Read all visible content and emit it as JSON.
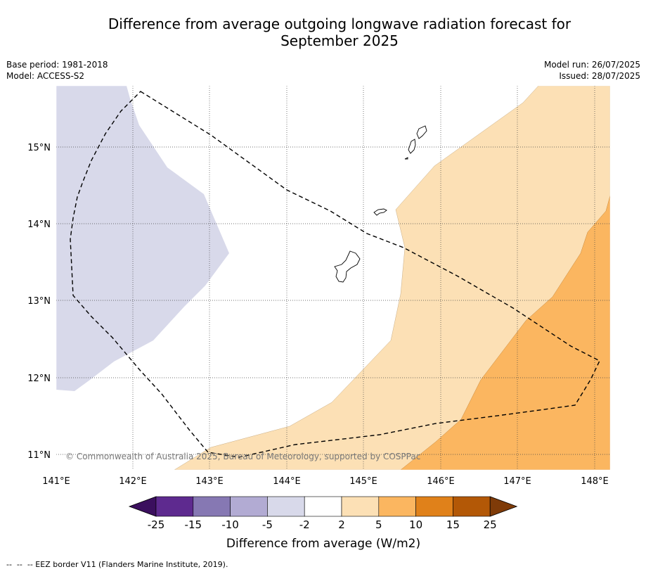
{
  "header": {
    "title_line1": "Difference from average outgoing longwave radiation forecast for",
    "title_line2": "September 2025",
    "base_period": "Base period: 1981-2018",
    "model": "Model: ACCESS-S2",
    "model_run": "Model run: 26/07/2025",
    "issued": "Issued: 28/07/2025"
  },
  "map": {
    "lat_labels": [
      "15°N",
      "14°N",
      "13°N",
      "12°N",
      "11°N"
    ],
    "lon_labels": [
      "141°E",
      "142°E",
      "143°E",
      "144°E",
      "145°E",
      "146°E",
      "147°E",
      "148°E"
    ],
    "copyright": "© Commonwealth of Australia 2025, Bureau of Meteorology, supported by COSPPac",
    "fill_colors": {
      "neg_2_to_neg_5": "#d8d9ea",
      "pos_2_to_5": "#fce0b5",
      "pos_5_to_10": "#fbb660"
    }
  },
  "colorbar": {
    "ticks": [
      "-25",
      "-15",
      "-10",
      "-5",
      "-2",
      "2",
      "5",
      "10",
      "15",
      "25"
    ],
    "colors": [
      "#3b0f5e",
      "#5e2a8f",
      "#8678b3",
      "#b2abd3",
      "#d8d9ea",
      "#ffffff",
      "#fce0b5",
      "#fbb660",
      "#e0811a",
      "#b35806",
      "#7f3b08"
    ],
    "title": "Difference from average (W/m2)"
  },
  "footer": {
    "legend_text": "--  --  -- EEZ border V11 (Flanders Marine Institute, 2019)."
  }
}
